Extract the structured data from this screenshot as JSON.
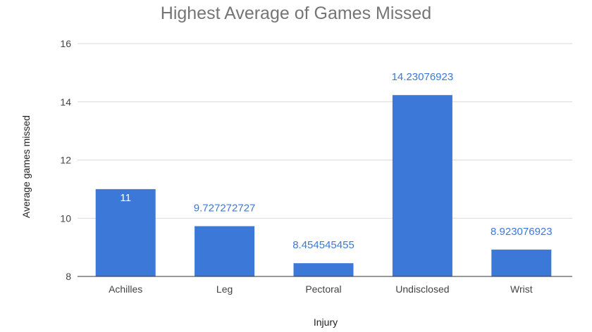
{
  "chart_data": {
    "type": "bar",
    "title": "Highest Average of Games Missed",
    "xlabel": "Injury",
    "ylabel": "Average games missed",
    "categories": [
      "Achilles",
      "Leg",
      "Pectoral",
      "Undisclosed",
      "Wrist"
    ],
    "values": [
      11,
      9.727272727,
      8.454545455,
      14.23076923,
      8.923076923
    ],
    "data_labels": [
      "11",
      "9.727272727",
      "8.454545455",
      "14.23076923",
      "8.923076923"
    ],
    "ylim": [
      8,
      16
    ],
    "yticks": [
      "8",
      "10",
      "12",
      "14",
      "16"
    ],
    "grid": true,
    "legend": "none",
    "colors": {
      "bar": "#3c78d8",
      "label_outside": "#3c78d8",
      "label_inside": "#ffffff"
    }
  }
}
